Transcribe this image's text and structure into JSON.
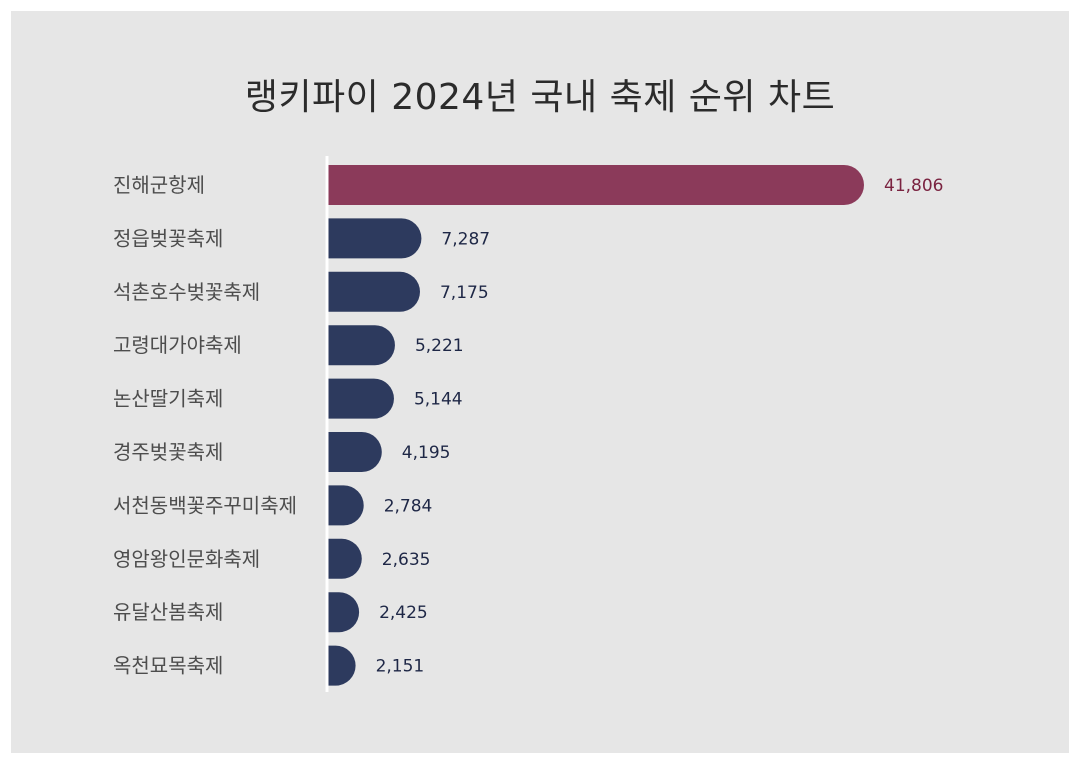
{
  "title": "랭키파이 2024년 국내 축제 순위 차트",
  "colors": {
    "background": "#e6e6e6",
    "highlight_bar": "#8b3a5a",
    "highlight_label": "#7a2340",
    "bar": "#2d3a5e",
    "value_label": "#1e2746",
    "axis": "#ffffff"
  },
  "chart_data": {
    "type": "bar",
    "orientation": "horizontal",
    "title": "랭키파이 2024년 국내 축제 순위 차트",
    "categories": [
      "진해군항제",
      "정읍벚꽃축제",
      "석촌호수벚꽃축제",
      "고령대가야축제",
      "논산딸기축제",
      "경주벚꽃축제",
      "서천동백꽃주꾸미축제",
      "영암왕인문화축제",
      "유달산봄축제",
      "옥천묘목축제"
    ],
    "values": [
      41806,
      7287,
      7175,
      5221,
      5144,
      4195,
      2784,
      2635,
      2425,
      2151
    ],
    "value_labels": [
      "41,806",
      "7,287",
      "7,175",
      "5,221",
      "5,144",
      "4,195",
      "2,784",
      "2,635",
      "2,425",
      "2,151"
    ],
    "highlight_index": 0,
    "grid": false,
    "legend": "none"
  }
}
